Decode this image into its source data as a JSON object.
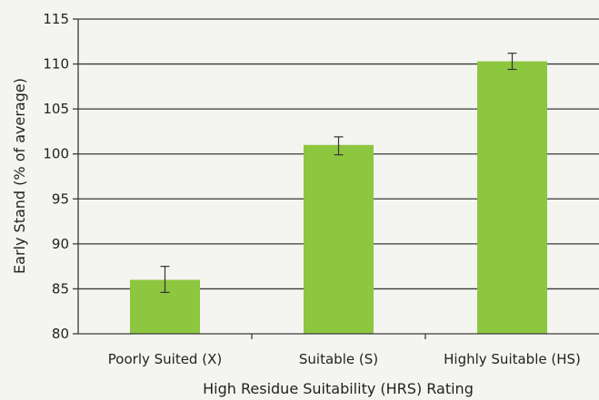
{
  "chart_data": {
    "type": "bar",
    "title": "",
    "xlabel": "High Residue Suitability (HRS) Rating",
    "ylabel": "Early Stand (% of average)",
    "categories": [
      "Poorly Suited (X)",
      "Suitable (S)",
      "Highly Suitable (HS)"
    ],
    "values": [
      86,
      101,
      110.3
    ],
    "error_low": [
      84.6,
      99.9,
      109.4
    ],
    "error_high": [
      87.5,
      101.9,
      111.2
    ],
    "ylim": [
      80,
      115
    ],
    "yticks": [
      80,
      85,
      90,
      95,
      100,
      105,
      110,
      115
    ],
    "ytick_labels": [
      "80",
      "85",
      "90",
      "95",
      "100",
      "105",
      "110",
      "115"
    ],
    "grid": "horizontal",
    "legend": "none",
    "bar_color": "#8dc63f",
    "gridline_color": "#3a3a3a",
    "errorbar_color": "#333333"
  }
}
